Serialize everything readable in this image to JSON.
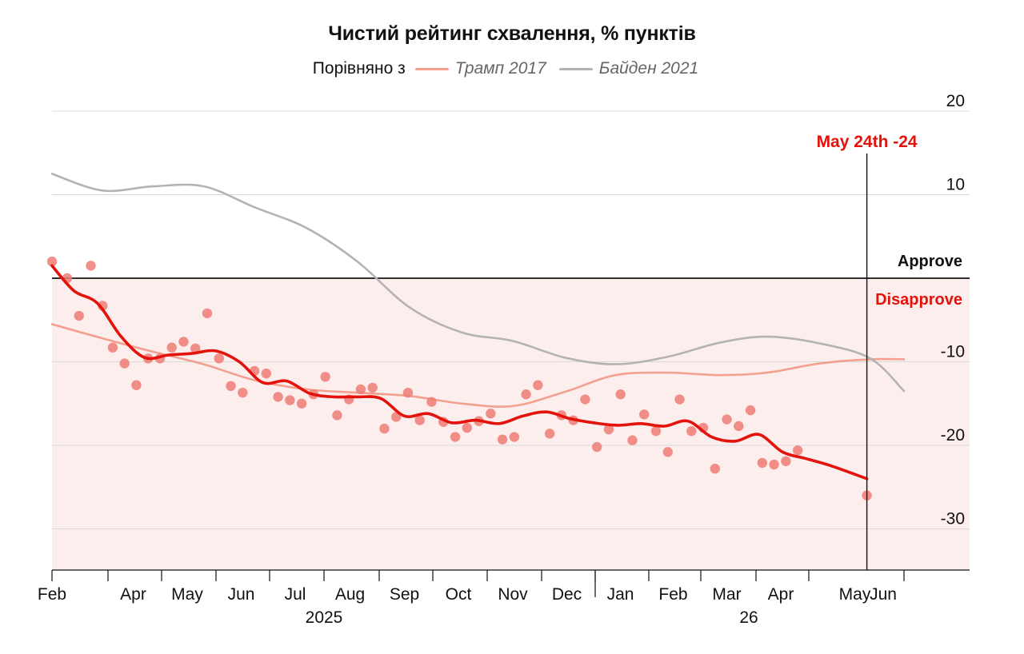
{
  "title": "Чистий рейтинг схвалення, % пунктів",
  "legend": {
    "lead": "Порівняно з",
    "items": [
      {
        "label": "Трамп 2017",
        "color": "#f4a08f"
      },
      {
        "label": "Байден 2021",
        "color": "#b3b3b3"
      }
    ]
  },
  "colors": {
    "main": "#e3120b",
    "dots": "#ee7b74",
    "disapprove_band": "#fdeeee",
    "grid": "#d9d9d9"
  },
  "chart_data": {
    "type": "line",
    "ylim": [
      -35,
      20
    ],
    "y_ticks": [
      "20",
      "10",
      "-10",
      "-20",
      "-30"
    ],
    "month_ticks": [
      "Feb",
      "Apr",
      "May",
      "Jun",
      "Jul",
      "Aug",
      "Sep",
      "Oct",
      "Nov",
      "Dec",
      "Jan",
      "Feb",
      "Mar",
      "Apr",
      "May",
      "Jun"
    ],
    "year_labels": [
      "2025",
      "26"
    ],
    "zero_labels": {
      "above": "Approve",
      "below": "Disapprove"
    },
    "annotation": {
      "label": "May 24th -24",
      "date": "2026-05-24",
      "value": -24
    },
    "poll_points": [
      [
        "2025-01-26",
        2
      ],
      [
        "2025-02-04",
        0
      ],
      [
        "2025-02-11",
        -4.5
      ],
      [
        "2025-02-18",
        1.5
      ],
      [
        "2025-02-25",
        -3.3
      ],
      [
        "2025-03-03",
        -8.3
      ],
      [
        "2025-03-10",
        -10.2
      ],
      [
        "2025-03-17",
        -12.8
      ],
      [
        "2025-03-24",
        -9.6
      ],
      [
        "2025-03-31",
        -9.6
      ],
      [
        "2025-04-07",
        -8.3
      ],
      [
        "2025-04-14",
        -7.6
      ],
      [
        "2025-04-21",
        -8.4
      ],
      [
        "2025-04-28",
        -4.2
      ],
      [
        "2025-05-05",
        -9.6
      ],
      [
        "2025-05-12",
        -12.9
      ],
      [
        "2025-05-19",
        -13.7
      ],
      [
        "2025-05-26",
        -11.1
      ],
      [
        "2025-06-02",
        -11.4
      ],
      [
        "2025-06-09",
        -14.2
      ],
      [
        "2025-06-16",
        -14.6
      ],
      [
        "2025-06-23",
        -15
      ],
      [
        "2025-06-30",
        -13.9
      ],
      [
        "2025-07-07",
        -11.8
      ],
      [
        "2025-07-14",
        -16.4
      ],
      [
        "2025-07-21",
        -14.5
      ],
      [
        "2025-07-28",
        -13.3
      ],
      [
        "2025-08-04",
        -13.1
      ],
      [
        "2025-08-11",
        -18
      ],
      [
        "2025-08-18",
        -16.6
      ],
      [
        "2025-08-25",
        -13.7
      ],
      [
        "2025-09-01",
        -17
      ],
      [
        "2025-09-08",
        -14.8
      ],
      [
        "2025-09-15",
        -17.2
      ],
      [
        "2025-09-22",
        -19
      ],
      [
        "2025-09-29",
        -17.9
      ],
      [
        "2025-10-06",
        -17.1
      ],
      [
        "2025-10-13",
        -16.2
      ],
      [
        "2025-10-20",
        -19.3
      ],
      [
        "2025-10-27",
        -19
      ],
      [
        "2025-11-03",
        -13.9
      ],
      [
        "2025-11-10",
        -12.8
      ],
      [
        "2025-11-17",
        -18.6
      ],
      [
        "2025-11-24",
        -16.4
      ],
      [
        "2025-12-01",
        -17
      ],
      [
        "2025-12-08",
        -14.5
      ],
      [
        "2025-12-15",
        -20.2
      ],
      [
        "2025-12-22",
        -18.1
      ],
      [
        "2025-12-29",
        -13.9
      ],
      [
        "2026-01-05",
        -19.4
      ],
      [
        "2026-01-12",
        -16.3
      ],
      [
        "2026-01-19",
        -18.3
      ],
      [
        "2026-01-26",
        -20.8
      ],
      [
        "2026-02-02",
        -14.5
      ],
      [
        "2026-02-09",
        -18.3
      ],
      [
        "2026-02-16",
        -17.9
      ],
      [
        "2026-02-23",
        -22.8
      ],
      [
        "2026-03-02",
        -16.9
      ],
      [
        "2026-03-09",
        -17.7
      ],
      [
        "2026-03-16",
        -15.8
      ],
      [
        "2026-03-23",
        -22.1
      ],
      [
        "2026-03-30",
        -22.3
      ],
      [
        "2026-04-06",
        -21.9
      ],
      [
        "2026-04-13",
        -20.6
      ],
      [
        "2026-05-24",
        -26
      ]
    ],
    "series": [
      {
        "name": "",
        "role": "trend",
        "color": "#e3120b",
        "points": [
          [
            "2025-01-26",
            1.5
          ],
          [
            "2025-02-08",
            -1.5
          ],
          [
            "2025-02-22",
            -3
          ],
          [
            "2025-03-08",
            -7
          ],
          [
            "2025-03-22",
            -9.5
          ],
          [
            "2025-04-05",
            -9.2
          ],
          [
            "2025-04-19",
            -9
          ],
          [
            "2025-05-03",
            -8.7
          ],
          [
            "2025-05-17",
            -10
          ],
          [
            "2025-05-31",
            -12.5
          ],
          [
            "2025-06-14",
            -12.3
          ],
          [
            "2025-06-28",
            -13.8
          ],
          [
            "2025-07-12",
            -14.2
          ],
          [
            "2025-07-26",
            -14.2
          ],
          [
            "2025-08-09",
            -14.4
          ],
          [
            "2025-08-23",
            -16.5
          ],
          [
            "2025-09-06",
            -16.2
          ],
          [
            "2025-09-20",
            -17.3
          ],
          [
            "2025-10-04",
            -17
          ],
          [
            "2025-10-18",
            -17.4
          ],
          [
            "2025-11-01",
            -16.5
          ],
          [
            "2025-11-15",
            -16
          ],
          [
            "2025-11-29",
            -16.8
          ],
          [
            "2025-12-13",
            -17.3
          ],
          [
            "2025-12-27",
            -17.6
          ],
          [
            "2026-01-10",
            -17.4
          ],
          [
            "2026-01-24",
            -17.7
          ],
          [
            "2026-02-07",
            -17.1
          ],
          [
            "2026-02-21",
            -19
          ],
          [
            "2026-03-07",
            -19.5
          ],
          [
            "2026-03-21",
            -18.7
          ],
          [
            "2026-04-04",
            -20.8
          ],
          [
            "2026-04-18",
            -21.6
          ],
          [
            "2026-05-02",
            -22.4
          ],
          [
            "2026-05-24",
            -24
          ]
        ]
      },
      {
        "name": "Трамп 2017",
        "color": "#f4a08f",
        "points": [
          [
            "2025-01-26",
            -5.5
          ],
          [
            "2025-02-25",
            -7.2
          ],
          [
            "2025-03-27",
            -8.8
          ],
          [
            "2025-04-26",
            -10.3
          ],
          [
            "2025-05-26",
            -12.2
          ],
          [
            "2025-06-26",
            -13.3
          ],
          [
            "2025-07-26",
            -13.7
          ],
          [
            "2025-08-26",
            -14.1
          ],
          [
            "2025-09-26",
            -15
          ],
          [
            "2025-10-26",
            -15.3
          ],
          [
            "2025-11-26",
            -13.6
          ],
          [
            "2025-12-26",
            -11.6
          ],
          [
            "2026-01-26",
            -11.3
          ],
          [
            "2026-02-26",
            -11.6
          ],
          [
            "2026-03-26",
            -11.3
          ],
          [
            "2026-04-26",
            -10.2
          ],
          [
            "2026-05-26",
            -9.7
          ],
          [
            "2026-06-15",
            -9.7
          ]
        ]
      },
      {
        "name": "Байден 2021",
        "color": "#b3b3b3",
        "points": [
          [
            "2025-01-26",
            12.5
          ],
          [
            "2025-02-25",
            10.5
          ],
          [
            "2025-03-27",
            11
          ],
          [
            "2025-04-26",
            11
          ],
          [
            "2025-05-26",
            8.5
          ],
          [
            "2025-06-26",
            6
          ],
          [
            "2025-07-26",
            2
          ],
          [
            "2025-08-26",
            -3.5
          ],
          [
            "2025-09-26",
            -6.5
          ],
          [
            "2025-10-26",
            -7.5
          ],
          [
            "2025-11-26",
            -9.5
          ],
          [
            "2025-12-26",
            -10.3
          ],
          [
            "2026-01-26",
            -9.4
          ],
          [
            "2026-02-26",
            -7.7
          ],
          [
            "2026-03-26",
            -7
          ],
          [
            "2026-04-26",
            -7.8
          ],
          [
            "2026-05-26",
            -9.6
          ],
          [
            "2026-06-15",
            -13.5
          ]
        ]
      }
    ]
  }
}
